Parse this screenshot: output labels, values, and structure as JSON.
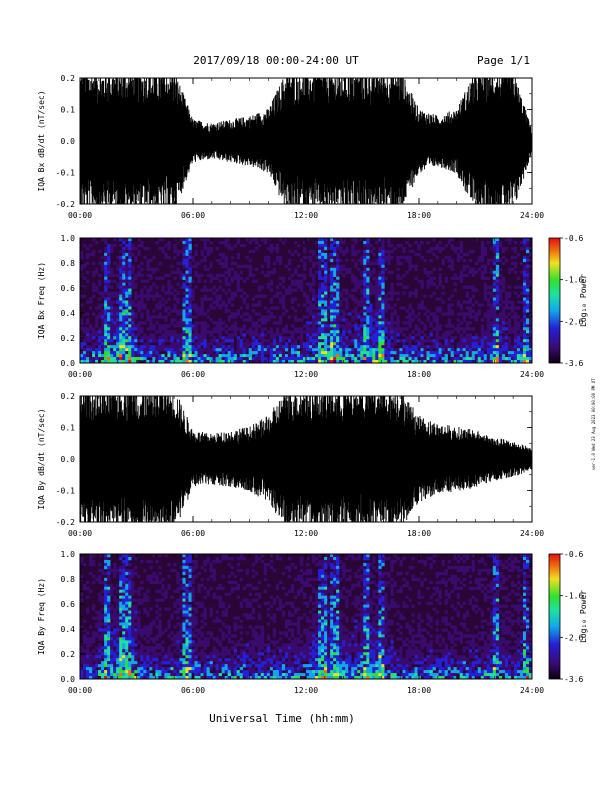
{
  "header": {
    "title": "2017/09/18  00:00-24:00 UT",
    "page": "Page 1/1"
  },
  "side_note": "ver-1.0  Wed 23 Aug 2023 00:00:00 PM UT",
  "xlabel": "Universal Time (hh:mm)",
  "colors": {
    "waveform": "#000000",
    "background_spectrogram": "#2a0636",
    "colormap": [
      "#0b0010",
      "#3a0a6e",
      "#2420d8",
      "#12a8e8",
      "#20e0a0",
      "#30e030",
      "#f0e020",
      "#f07010",
      "#e01010"
    ]
  },
  "chart_data": [
    {
      "type": "waveform",
      "panel": "waveform-bx",
      "ylabel": "IQA Bx dB/dt (nT/sec)",
      "ylim": [
        -0.2,
        0.2
      ],
      "yticks": [
        "0.2",
        "0.1",
        "0.0",
        "-0.1",
        "-0.2"
      ],
      "xticks": [
        "00:00",
        "06:00",
        "12:00",
        "18:00",
        "24:00"
      ],
      "xlim": [
        0,
        24
      ],
      "amplitude_hours": [
        0,
        1,
        2,
        3,
        4,
        5,
        6,
        7,
        8,
        9,
        10,
        11,
        12,
        13,
        14,
        15,
        16,
        17,
        18,
        19,
        20,
        21,
        22,
        23,
        24
      ],
      "amplitude_envelope": [
        0.2,
        0.2,
        0.2,
        0.2,
        0.2,
        0.2,
        0.06,
        0.05,
        0.06,
        0.07,
        0.09,
        0.2,
        0.2,
        0.2,
        0.2,
        0.2,
        0.2,
        0.2,
        0.09,
        0.07,
        0.09,
        0.2,
        0.2,
        0.2,
        0.03
      ]
    },
    {
      "type": "heatmap",
      "panel": "spectrogram-bx",
      "ylabel": "IQA Bx Freq (Hz)",
      "ylim": [
        0,
        1.0
      ],
      "yticks": [
        "1.0",
        "0.8",
        "0.6",
        "0.4",
        "0.2",
        "0.0"
      ],
      "xticks": [
        "00:00",
        "06:00",
        "12:00",
        "18:00",
        "24:00"
      ],
      "xlim": [
        0,
        24
      ],
      "colorbar_label": "Log₁₀ Power",
      "colorbar_ticks": [
        "-0.6",
        "-1.6",
        "-2.6",
        "-3.6"
      ],
      "colorbar_range": [
        -3.6,
        -0.6
      ],
      "bright_bands_hours": [
        1.5,
        2.3,
        2.6,
        5.7,
        12.9,
        13.5,
        15.2,
        16.0,
        22.1,
        23.7
      ]
    },
    {
      "type": "waveform",
      "panel": "waveform-by",
      "ylabel": "IQA By dB/dt (nT/sec)",
      "ylim": [
        -0.2,
        0.2
      ],
      "yticks": [
        "0.2",
        "0.1",
        "0.0",
        "-0.1",
        "-0.2"
      ],
      "xticks": [
        "00:00",
        "06:00",
        "12:00",
        "18:00",
        "24:00"
      ],
      "xlim": [
        0,
        24
      ],
      "amplitude_hours": [
        0,
        1,
        2,
        3,
        4,
        5,
        6,
        7,
        8,
        9,
        10,
        11,
        12,
        13,
        14,
        15,
        16,
        17,
        18,
        19,
        20,
        21,
        22,
        23,
        24
      ],
      "amplitude_envelope": [
        0.2,
        0.2,
        0.2,
        0.2,
        0.2,
        0.2,
        0.08,
        0.07,
        0.08,
        0.09,
        0.12,
        0.2,
        0.2,
        0.2,
        0.2,
        0.2,
        0.2,
        0.2,
        0.12,
        0.1,
        0.09,
        0.08,
        0.06,
        0.05,
        0.03
      ]
    },
    {
      "type": "heatmap",
      "panel": "spectrogram-by",
      "ylabel": "IQA By Freq (Hz)",
      "ylim": [
        0,
        1.0
      ],
      "yticks": [
        "1.0",
        "0.8",
        "0.6",
        "0.4",
        "0.2",
        "0.0"
      ],
      "xticks": [
        "00:00",
        "06:00",
        "12:00",
        "18:00",
        "24:00"
      ],
      "xlim": [
        0,
        24
      ],
      "colorbar_label": "Log₁₀ Power",
      "colorbar_ticks": [
        "-0.6",
        "-1.6",
        "-2.6",
        "-3.6"
      ],
      "colorbar_range": [
        -3.6,
        -0.6
      ],
      "bright_bands_hours": [
        1.5,
        2.3,
        2.6,
        5.7,
        12.9,
        13.5,
        15.2,
        16.0,
        22.1,
        23.7
      ]
    }
  ]
}
